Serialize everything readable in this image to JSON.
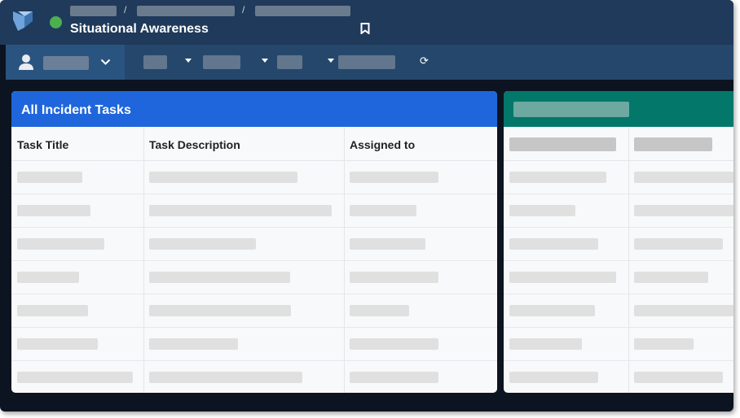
{
  "header": {
    "title": "Situational Awareness",
    "status_color": "#4caf50",
    "breadcrumb_separator": "/",
    "icons": [
      "logo-icon",
      "bookmark-icon"
    ]
  },
  "toolbar": {
    "icons": [
      "user-icon",
      "chevron-down-icon",
      "caret-down-icon",
      "refresh-icon"
    ]
  },
  "panels": [
    {
      "title": "All Incident Tasks",
      "color": "#1f66dc",
      "columns": [
        "Task Title",
        "Task Description",
        "Assigned to"
      ],
      "row_count": 7
    },
    {
      "title": "",
      "color": "#03786a",
      "columns": [
        "",
        ""
      ],
      "row_count": 7
    }
  ]
}
